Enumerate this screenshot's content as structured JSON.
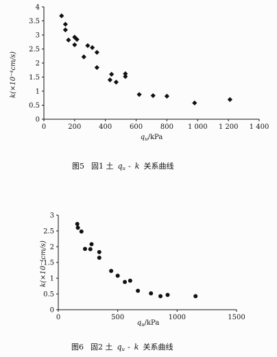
{
  "chart_data": [
    {
      "type": "scatter",
      "caption": "图5  固1 土 q_u - k 关系曲线",
      "caption_parts": {
        "fig": "图5",
        "text1": "固1 土",
        "q": "q",
        "q_sub": "u",
        "dash": "-",
        "k": "k",
        "text2": "关系曲线"
      },
      "xlabel": "q_u /kPa",
      "xlabel_parts": {
        "q": "q",
        "sub": "u",
        "unit": "/kPa"
      },
      "ylabel": "k(×10⁻⁴cm/s)",
      "xlim": [
        0,
        1400
      ],
      "ylim": [
        0,
        4
      ],
      "xticks": [
        "0",
        "200",
        "400",
        "600",
        "800",
        "1 000",
        "1 200",
        "1 400"
      ],
      "xtick_values": [
        0,
        200,
        400,
        600,
        800,
        1000,
        1200,
        1400
      ],
      "yticks": [
        "0",
        "0.5",
        "1",
        "1.5",
        "2",
        "2.5",
        "3",
        "3.5",
        "4"
      ],
      "ytick_values": [
        0,
        0.5,
        1,
        1.5,
        2,
        2.5,
        3,
        3.5,
        4
      ],
      "marker": "diamond",
      "points": [
        {
          "x": 115,
          "y": 3.68
        },
        {
          "x": 140,
          "y": 3.38
        },
        {
          "x": 140,
          "y": 3.18
        },
        {
          "x": 160,
          "y": 2.82
        },
        {
          "x": 200,
          "y": 2.92
        },
        {
          "x": 200,
          "y": 2.65
        },
        {
          "x": 215,
          "y": 2.84
        },
        {
          "x": 260,
          "y": 2.22
        },
        {
          "x": 285,
          "y": 2.62
        },
        {
          "x": 315,
          "y": 2.55
        },
        {
          "x": 345,
          "y": 2.38
        },
        {
          "x": 345,
          "y": 1.84
        },
        {
          "x": 430,
          "y": 1.4
        },
        {
          "x": 440,
          "y": 1.6
        },
        {
          "x": 470,
          "y": 1.32
        },
        {
          "x": 530,
          "y": 1.62
        },
        {
          "x": 530,
          "y": 1.52
        },
        {
          "x": 620,
          "y": 0.88
        },
        {
          "x": 710,
          "y": 0.84
        },
        {
          "x": 800,
          "y": 0.82
        },
        {
          "x": 980,
          "y": 0.58
        },
        {
          "x": 1210,
          "y": 0.7
        }
      ]
    },
    {
      "type": "scatter",
      "caption": "图6  固2 土 q_u - k 关系曲线",
      "caption_parts": {
        "fig": "图6",
        "text1": "固2 土",
        "q": "q",
        "q_sub": "u",
        "dash": "-",
        "k": "k",
        "text2": "关系曲线"
      },
      "xlabel": "q_u /kPa",
      "xlabel_parts": {
        "q": "q",
        "sub": "u",
        "unit": "/kPa"
      },
      "ylabel": "k(×10⁻⁴cm/s)",
      "xlim": [
        0,
        1500
      ],
      "ylim": [
        0,
        3
      ],
      "xticks": [
        "0",
        "500",
        "1000",
        "1500"
      ],
      "xtick_values": [
        0,
        500,
        1000,
        1500
      ],
      "yticks": [
        "0",
        "0.5",
        "1",
        "1.5",
        "2",
        "2.5",
        "3"
      ],
      "ytick_values": [
        0,
        0.5,
        1,
        1.5,
        2,
        2.5,
        3
      ],
      "marker": "circle",
      "points": [
        {
          "x": 160,
          "y": 2.72
        },
        {
          "x": 165,
          "y": 2.6
        },
        {
          "x": 195,
          "y": 2.48
        },
        {
          "x": 225,
          "y": 1.93
        },
        {
          "x": 270,
          "y": 1.92
        },
        {
          "x": 280,
          "y": 2.08
        },
        {
          "x": 345,
          "y": 1.83
        },
        {
          "x": 345,
          "y": 1.65
        },
        {
          "x": 445,
          "y": 1.23
        },
        {
          "x": 500,
          "y": 1.08
        },
        {
          "x": 560,
          "y": 0.88
        },
        {
          "x": 605,
          "y": 0.92
        },
        {
          "x": 670,
          "y": 0.6
        },
        {
          "x": 780,
          "y": 0.52
        },
        {
          "x": 860,
          "y": 0.43
        },
        {
          "x": 920,
          "y": 0.47
        },
        {
          "x": 1155,
          "y": 0.43
        }
      ]
    }
  ]
}
